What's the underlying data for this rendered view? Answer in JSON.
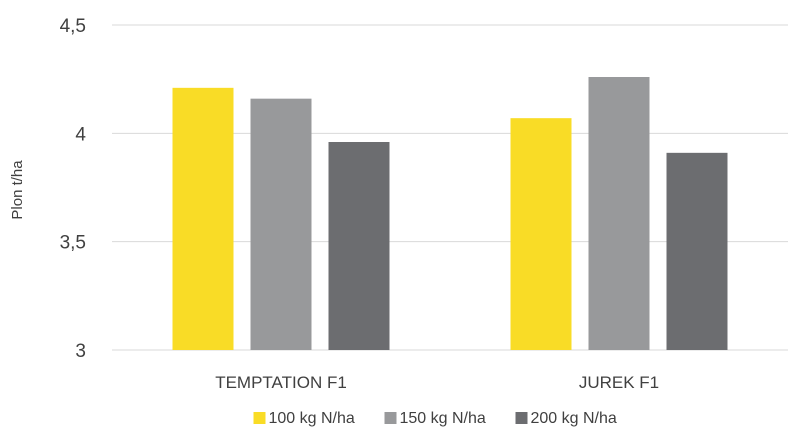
{
  "chart_data": {
    "type": "bar",
    "title": "",
    "xlabel": "",
    "ylabel": "Plon t/ha",
    "ylim": [
      3,
      4.5
    ],
    "yticks": [
      3,
      3.5,
      4,
      4.5
    ],
    "ytick_labels": [
      "3",
      "3,5",
      "4",
      "4,5"
    ],
    "categories": [
      "TEMPTATION F1",
      "JUREK F1"
    ],
    "series": [
      {
        "name": "100 kg N/ha",
        "color": "#f9dc26",
        "values": [
          4.21,
          4.07
        ]
      },
      {
        "name": "150 kg N/ha",
        "color": "#98999b",
        "values": [
          4.16,
          4.26
        ]
      },
      {
        "name": "200 kg N/ha",
        "color": "#6c6d70",
        "values": [
          3.96,
          3.91
        ]
      }
    ],
    "grid": true,
    "legend": "bottom"
  }
}
